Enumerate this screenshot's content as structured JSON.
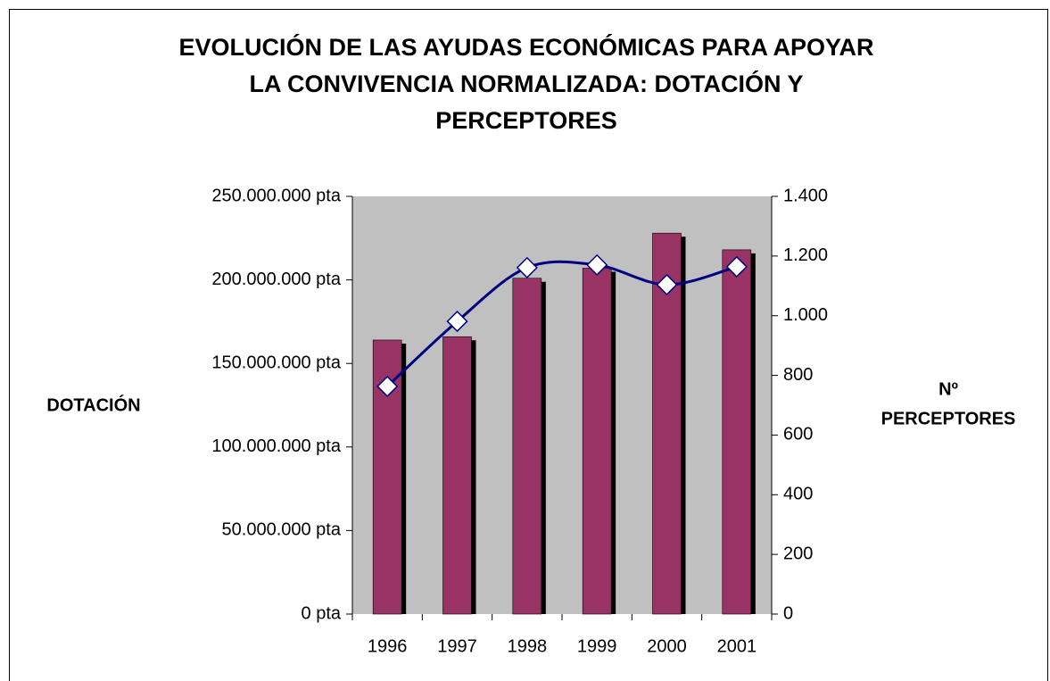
{
  "chart_data": {
    "type": "bar_line",
    "title": [
      "EVOLUCIÓN DE LAS AYUDAS ECONÓMICAS PARA APOYAR",
      "LA CONVIVENCIA NORMALIZADA: DOTACIÓN Y",
      "PERCEPTORES"
    ],
    "y_label": "DOTACIÓN",
    "y2_label": [
      "Nº",
      "PERCEPTORES"
    ],
    "categories": [
      "1996",
      "1997",
      "1998",
      "1999",
      "2000",
      "2001"
    ],
    "series": [
      {
        "name": "Dotación",
        "type": "bar",
        "color": "#993366",
        "values": [
          164000000,
          166000000,
          201000000,
          207000000,
          228000000,
          218000000
        ]
      },
      {
        "name": "Nº perceptores",
        "type": "line",
        "axis": "y2",
        "color": "#000080",
        "smooth": true,
        "values": [
          763,
          981,
          1161,
          1170,
          1104,
          1164
        ]
      }
    ],
    "ylim": [
      0,
      250000000
    ],
    "yticks": [
      {
        "value": 0,
        "label": "0 pta"
      },
      {
        "value": 50000000,
        "label": "50.000.000 pta"
      },
      {
        "value": 100000000,
        "label": "100.000.000 pta"
      },
      {
        "value": 150000000,
        "label": "150.000.000 pta"
      },
      {
        "value": 200000000,
        "label": "200.000.000 pta"
      },
      {
        "value": 250000000,
        "label": "250.000.000 pta"
      }
    ],
    "y2lim": [
      0,
      1400
    ],
    "y2ticks": [
      0,
      200,
      400,
      600,
      800,
      {
        "value": 1000,
        "label": "1.000"
      },
      {
        "value": 1200,
        "label": "1.200"
      },
      {
        "value": 1400,
        "label": "1.400"
      }
    ],
    "plot_background": "#c0c0c0"
  }
}
